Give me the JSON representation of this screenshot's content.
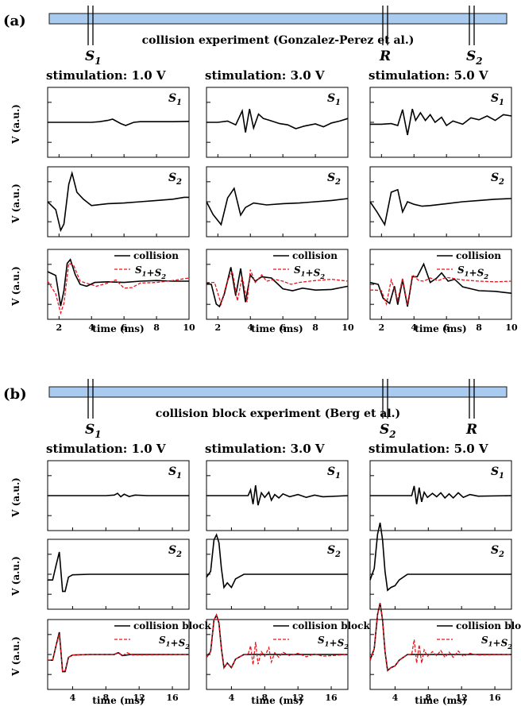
{
  "panels": [
    {
      "label": "(a)",
      "title": "collision experiment (Gonzalez-Perez et al.)",
      "electrodes": [
        "S1",
        "R",
        "S2"
      ],
      "columns": [
        "stimulation: 1.0 V",
        "stimulation: 3.0 V",
        "stimulation: 5.0 V"
      ],
      "rows": [
        "S1",
        "S2",
        "collision"
      ],
      "ylabel": "V (a.u.)",
      "xlabel": "time (ms)",
      "legend": [
        "collision",
        "S1+S2"
      ],
      "xticks": [
        "2",
        "4",
        "6",
        "8",
        "10"
      ],
      "xlim": [
        1.3,
        10
      ]
    },
    {
      "label": "(b)",
      "title": "collision block experiment (Berg et al.)",
      "electrodes": [
        "S1",
        "S2",
        "R"
      ],
      "columns": [
        "stimulation: 1.0 V",
        "stimulation: 3.0 V",
        "stimulation: 5.0 V"
      ],
      "rows": [
        "S1",
        "S2",
        "collision"
      ],
      "ylabel": "V (a.u.)",
      "xlabel": "time (ms)",
      "legend": [
        "collision block",
        "S1+S2"
      ],
      "xticks": [
        "4",
        "8",
        "12",
        "16"
      ],
      "xlim": [
        1,
        18
      ]
    }
  ],
  "colors": {
    "main": "#000000",
    "sum": "#e8141c",
    "nerve": "#a9cbf0",
    "nerve_border": "#1a1a1a"
  },
  "chart_data": [
    {
      "type": "line",
      "panel": "a",
      "xlabel": "time (ms)",
      "ylabel": "V (a.u.)",
      "xlim": [
        1.3,
        10
      ],
      "series": [
        {
          "name": "S1",
          "column": "stimulation: 1.0 V",
          "x": [
            1.3,
            2,
            3,
            4,
            4.5,
            5,
            5.3,
            5.8,
            6.1,
            6.6,
            7,
            8,
            9,
            10
          ],
          "y": [
            0,
            0,
            0,
            0,
            0.02,
            0.06,
            0.1,
            -0.04,
            -0.1,
            0,
            0.02,
            0.02,
            0.02,
            0.03
          ]
        },
        {
          "name": "S1",
          "column": "stimulation: 3.0 V",
          "x": [
            1.3,
            2,
            2.6,
            3.1,
            3.5,
            3.7,
            3.95,
            4.2,
            4.5,
            4.8,
            5.2,
            5.8,
            6.3,
            6.8,
            7.3,
            8,
            8.5,
            9,
            9.5,
            10
          ],
          "y": [
            0,
            0,
            0.04,
            -0.08,
            0.36,
            -0.32,
            0.42,
            -0.18,
            0.26,
            0.12,
            0.06,
            -0.04,
            -0.08,
            -0.2,
            -0.12,
            -0.05,
            -0.14,
            -0.02,
            0.04,
            0.12
          ]
        },
        {
          "name": "S1",
          "column": "stimulation: 5.0 V",
          "x": [
            1.3,
            2,
            2.6,
            3,
            3.3,
            3.6,
            3.9,
            4.1,
            4.4,
            4.7,
            5,
            5.3,
            5.7,
            6,
            6.4,
            7,
            7.5,
            8,
            8.5,
            9,
            9.5,
            10
          ],
          "y": [
            -0.06,
            -0.06,
            -0.04,
            -0.1,
            0.4,
            -0.4,
            0.42,
            0.06,
            0.3,
            0.06,
            0.24,
            0,
            0.16,
            -0.1,
            0.04,
            -0.06,
            0.14,
            0.08,
            0.2,
            0.06,
            0.24,
            0.2
          ]
        },
        {
          "name": "S2",
          "column": "stimulation: 1.0 V",
          "x": [
            1.3,
            1.8,
            2.1,
            2.3,
            2.6,
            2.8,
            3.1,
            3.5,
            4,
            5,
            6,
            7,
            8,
            9,
            9.7,
            10
          ],
          "y": [
            0,
            -0.25,
            -0.9,
            -0.7,
            0.55,
            0.9,
            0.3,
            0.08,
            -0.12,
            -0.06,
            -0.04,
            0,
            0.04,
            0.08,
            0.14,
            0.14
          ]
        },
        {
          "name": "S2",
          "column": "stimulation: 3.0 V",
          "x": [
            1.3,
            1.7,
            2.2,
            2.6,
            3,
            3.4,
            3.7,
            4.2,
            5,
            6,
            7,
            8,
            9,
            10
          ],
          "y": [
            0,
            -0.4,
            -0.72,
            0.12,
            0.42,
            -0.42,
            -0.18,
            -0.04,
            -0.1,
            -0.06,
            -0.04,
            0,
            0.04,
            0.1
          ]
        },
        {
          "name": "S2",
          "column": "stimulation: 5.0 V",
          "x": [
            1.3,
            1.7,
            2.2,
            2.6,
            3,
            3.3,
            3.6,
            4,
            4.5,
            5,
            6,
            7,
            8,
            9,
            10
          ],
          "y": [
            0,
            -0.3,
            -0.72,
            0.3,
            0.38,
            -0.32,
            0,
            -0.08,
            -0.14,
            -0.12,
            -0.06,
            0,
            0.04,
            0.08,
            0.1
          ]
        },
        {
          "name": "collision",
          "column": "stimulation: 1.0 V",
          "x": [
            1.3,
            1.8,
            2.1,
            2.3,
            2.5,
            2.7,
            3,
            3.3,
            3.7,
            4.2,
            5,
            6,
            7,
            8,
            9,
            10
          ],
          "y": [
            0.4,
            0.28,
            -0.68,
            -0.2,
            0.66,
            0.78,
            0.3,
            0,
            -0.06,
            0.06,
            0.08,
            0.06,
            0.1,
            0.12,
            0.1,
            0.1
          ]
        },
        {
          "name": "S1+S2",
          "column": "stimulation: 1.0 V",
          "x": [
            1.3,
            1.8,
            2.1,
            2.3,
            2.6,
            2.9,
            3.3,
            3.8,
            4.3,
            5,
            5.5,
            6,
            6.5,
            7,
            8,
            9,
            10
          ],
          "y": [
            0.1,
            -0.3,
            -0.9,
            -0.6,
            0.66,
            0.6,
            0.1,
            0.02,
            -0.06,
            0.04,
            0.14,
            -0.12,
            -0.1,
            0.04,
            0.06,
            0.12,
            0.2
          ]
        },
        {
          "name": "collision",
          "column": "stimulation: 3.0 V",
          "x": [
            1.3,
            1.6,
            1.9,
            2.1,
            2.4,
            2.8,
            3.1,
            3.4,
            3.7,
            4,
            4.3,
            4.7,
            5.3,
            6,
            6.6,
            7.2,
            8,
            9,
            10
          ],
          "y": [
            0.04,
            0,
            -0.62,
            -0.7,
            -0.3,
            0.54,
            -0.36,
            0.5,
            -0.56,
            0.3,
            0.1,
            0.24,
            0.2,
            -0.14,
            -0.2,
            -0.12,
            -0.18,
            -0.16,
            -0.06
          ]
        },
        {
          "name": "S1+S2",
          "column": "stimulation: 3.0 V",
          "x": [
            1.3,
            1.8,
            2.2,
            2.6,
            2.9,
            3.2,
            3.5,
            3.8,
            4,
            4.3,
            4.7,
            5,
            5.5,
            6,
            6.5,
            7,
            8,
            9,
            10
          ],
          "y": [
            0.06,
            0.06,
            -0.62,
            0.14,
            0.4,
            -0.52,
            0.24,
            -0.56,
            0.46,
            0.06,
            0.3,
            0.1,
            0.16,
            0.1,
            0,
            0.06,
            0.12,
            0.16,
            0.1
          ]
        },
        {
          "name": "collision",
          "column": "stimulation: 5.0 V",
          "x": [
            1.3,
            1.8,
            2.1,
            2.5,
            2.8,
            3,
            3.3,
            3.6,
            3.9,
            4.2,
            4.6,
            5,
            5.4,
            5.7,
            6.1,
            6.5,
            7,
            8,
            9,
            10
          ],
          "y": [
            0.06,
            0,
            -0.44,
            -0.6,
            -0.06,
            -0.64,
            0.14,
            -0.7,
            0.24,
            0.24,
            0.64,
            0.06,
            0.2,
            0.36,
            0.1,
            0.16,
            -0.08,
            -0.2,
            -0.22,
            -0.28
          ]
        },
        {
          "name": "S1+S2",
          "column": "stimulation: 5.0 V",
          "x": [
            1.3,
            1.6,
            2,
            2.3,
            2.6,
            3,
            3.3,
            3.6,
            3.9,
            4.3,
            4.6,
            5,
            5.5,
            6,
            7,
            8,
            9,
            10
          ],
          "y": [
            -0.18,
            -0.18,
            -0.2,
            -0.62,
            0.14,
            -0.5,
            0.2,
            -0.64,
            0.3,
            0.12,
            0.1,
            0.2,
            0.12,
            0.22,
            0.14,
            0.1,
            0.08,
            0.1
          ]
        }
      ]
    },
    {
      "type": "line",
      "panel": "b",
      "xlabel": "time (ms)",
      "ylabel": "V (a.u.)",
      "xlim": [
        1,
        18
      ],
      "series": [
        {
          "name": "S1",
          "column": "stimulation: 1.0 V",
          "x": [
            1,
            4,
            8,
            9,
            9.4,
            9.8,
            10.2,
            10.8,
            11.5,
            13,
            18
          ],
          "y": [
            0,
            0,
            0,
            0.02,
            0.08,
            -0.04,
            0.05,
            -0.03,
            0.02,
            0,
            0
          ]
        },
        {
          "name": "S1",
          "column": "stimulation: 3.0 V",
          "x": [
            1,
            5,
            6,
            6.3,
            6.6,
            6.9,
            7.2,
            7.6,
            8,
            8.5,
            8.8,
            9.2,
            9.7,
            10.2,
            11,
            12,
            13,
            14,
            15,
            18
          ],
          "y": [
            0,
            0,
            0,
            0.2,
            -0.3,
            0.36,
            -0.34,
            0.1,
            -0.06,
            0.12,
            -0.16,
            0.04,
            -0.08,
            0.06,
            -0.04,
            0.04,
            -0.06,
            0.02,
            -0.04,
            0
          ]
        },
        {
          "name": "S1",
          "column": "stimulation: 5.0 V",
          "x": [
            1,
            5,
            6,
            6.3,
            6.6,
            6.9,
            7.2,
            7.5,
            7.9,
            8.5,
            9,
            9.5,
            10,
            10.5,
            11,
            11.6,
            12.2,
            13,
            14,
            18
          ],
          "y": [
            0,
            0,
            0,
            0.34,
            -0.3,
            0.28,
            -0.22,
            0.12,
            -0.06,
            0.08,
            -0.04,
            0.1,
            -0.08,
            0.06,
            -0.08,
            0.1,
            -0.06,
            0.04,
            -0.02,
            0
          ]
        },
        {
          "name": "S2",
          "column": "stimulation: 1.0 V",
          "x": [
            1,
            1.6,
            2,
            2.4,
            2.8,
            3.1,
            3.5,
            4,
            6,
            10,
            18
          ],
          "y": [
            -0.2,
            -0.2,
            0.3,
            0.78,
            -0.6,
            -0.6,
            -0.1,
            -0.02,
            0,
            0,
            0
          ]
        },
        {
          "name": "S2",
          "column": "stimulation: 3.0 V",
          "x": [
            1,
            1.5,
            1.9,
            2.2,
            2.5,
            2.8,
            3.1,
            3.5,
            4,
            4.5,
            5.5,
            8,
            12,
            18
          ],
          "y": [
            -0.1,
            0.1,
            1.2,
            1.38,
            1.1,
            0.2,
            -0.46,
            -0.3,
            -0.46,
            -0.16,
            0,
            0,
            0,
            0
          ]
        },
        {
          "name": "S2",
          "column": "stimulation: 5.0 V",
          "x": [
            1,
            1.5,
            1.9,
            2.2,
            2.5,
            2.8,
            3.1,
            3.5,
            4,
            4.5,
            5.5,
            8,
            12,
            18
          ],
          "y": [
            -0.2,
            0.2,
            1.4,
            1.8,
            1.2,
            0.1,
            -0.56,
            -0.46,
            -0.4,
            -0.2,
            0,
            0,
            0,
            0
          ]
        },
        {
          "name": "collision block",
          "column": "stimulation: 1.0 V",
          "x": [
            1,
            1.6,
            2,
            2.4,
            2.8,
            3.1,
            3.5,
            4,
            6,
            9,
            9.5,
            10,
            11,
            18
          ],
          "y": [
            -0.2,
            -0.2,
            0.3,
            0.78,
            -0.6,
            -0.6,
            -0.1,
            -0.02,
            0,
            0,
            0.06,
            -0.04,
            0,
            0
          ]
        },
        {
          "name": "S1+S2",
          "column": "stimulation: 1.0 V",
          "x": [
            1,
            1.6,
            2,
            2.4,
            2.8,
            3.1,
            3.5,
            4,
            6,
            9,
            9.5,
            10,
            10.6,
            11.2,
            18
          ],
          "y": [
            -0.2,
            -0.2,
            0.3,
            0.72,
            -0.6,
            -0.56,
            -0.1,
            -0.02,
            0,
            0,
            0.08,
            -0.04,
            0.06,
            -0.02,
            0
          ]
        },
        {
          "name": "collision block",
          "column": "stimulation: 3.0 V",
          "x": [
            1,
            1.5,
            1.9,
            2.2,
            2.5,
            2.8,
            3.1,
            3.5,
            4,
            4.5,
            5.5,
            8,
            12,
            18
          ],
          "y": [
            -0.1,
            0.1,
            1.2,
            1.38,
            1.1,
            0.2,
            -0.46,
            -0.3,
            -0.46,
            -0.16,
            0,
            0,
            0,
            0
          ]
        },
        {
          "name": "S1+S2",
          "column": "stimulation: 3.0 V",
          "x": [
            1,
            1.5,
            1.9,
            2.2,
            2.5,
            2.8,
            3.1,
            3.5,
            4,
            4.5,
            5.5,
            6,
            6.3,
            6.6,
            6.9,
            7.2,
            7.6,
            8,
            8.5,
            8.8,
            9.2,
            9.7,
            10.2,
            11,
            12,
            13,
            14,
            15,
            18
          ],
          "y": [
            -0.1,
            0.1,
            1.2,
            1.38,
            1.1,
            0.2,
            -0.46,
            -0.3,
            -0.46,
            -0.16,
            0,
            0,
            0.3,
            -0.36,
            0.44,
            -0.34,
            0.1,
            -0.06,
            0.24,
            -0.26,
            0.06,
            -0.1,
            0.08,
            -0.04,
            0.04,
            -0.08,
            0.02,
            -0.06,
            0
          ]
        },
        {
          "name": "collision block",
          "column": "stimulation: 5.0 V",
          "x": [
            1,
            1.5,
            1.9,
            2.2,
            2.5,
            2.8,
            3.1,
            3.5,
            4,
            4.5,
            5.5,
            8,
            12,
            18
          ],
          "y": [
            -0.2,
            0.2,
            1.4,
            1.8,
            1.2,
            0.1,
            -0.56,
            -0.46,
            -0.4,
            -0.2,
            0,
            0,
            0,
            0
          ]
        },
        {
          "name": "S1+S2",
          "column": "stimulation: 5.0 V",
          "x": [
            1,
            1.5,
            1.9,
            2.2,
            2.5,
            2.8,
            3.1,
            3.5,
            4,
            4.5,
            5.5,
            6,
            6.3,
            6.6,
            6.9,
            7.2,
            7.5,
            7.9,
            8.5,
            9,
            9.5,
            10,
            10.5,
            11,
            11.6,
            12.2,
            13,
            14,
            18
          ],
          "y": [
            -0.2,
            0.2,
            1.4,
            1.8,
            1.2,
            0.1,
            -0.56,
            -0.46,
            -0.4,
            -0.2,
            0,
            0,
            0.52,
            -0.3,
            0.34,
            -0.3,
            0.16,
            -0.06,
            0.1,
            -0.04,
            0.14,
            -0.1,
            0.08,
            -0.1,
            0.12,
            -0.06,
            0.04,
            -0.02,
            0
          ]
        }
      ]
    }
  ]
}
